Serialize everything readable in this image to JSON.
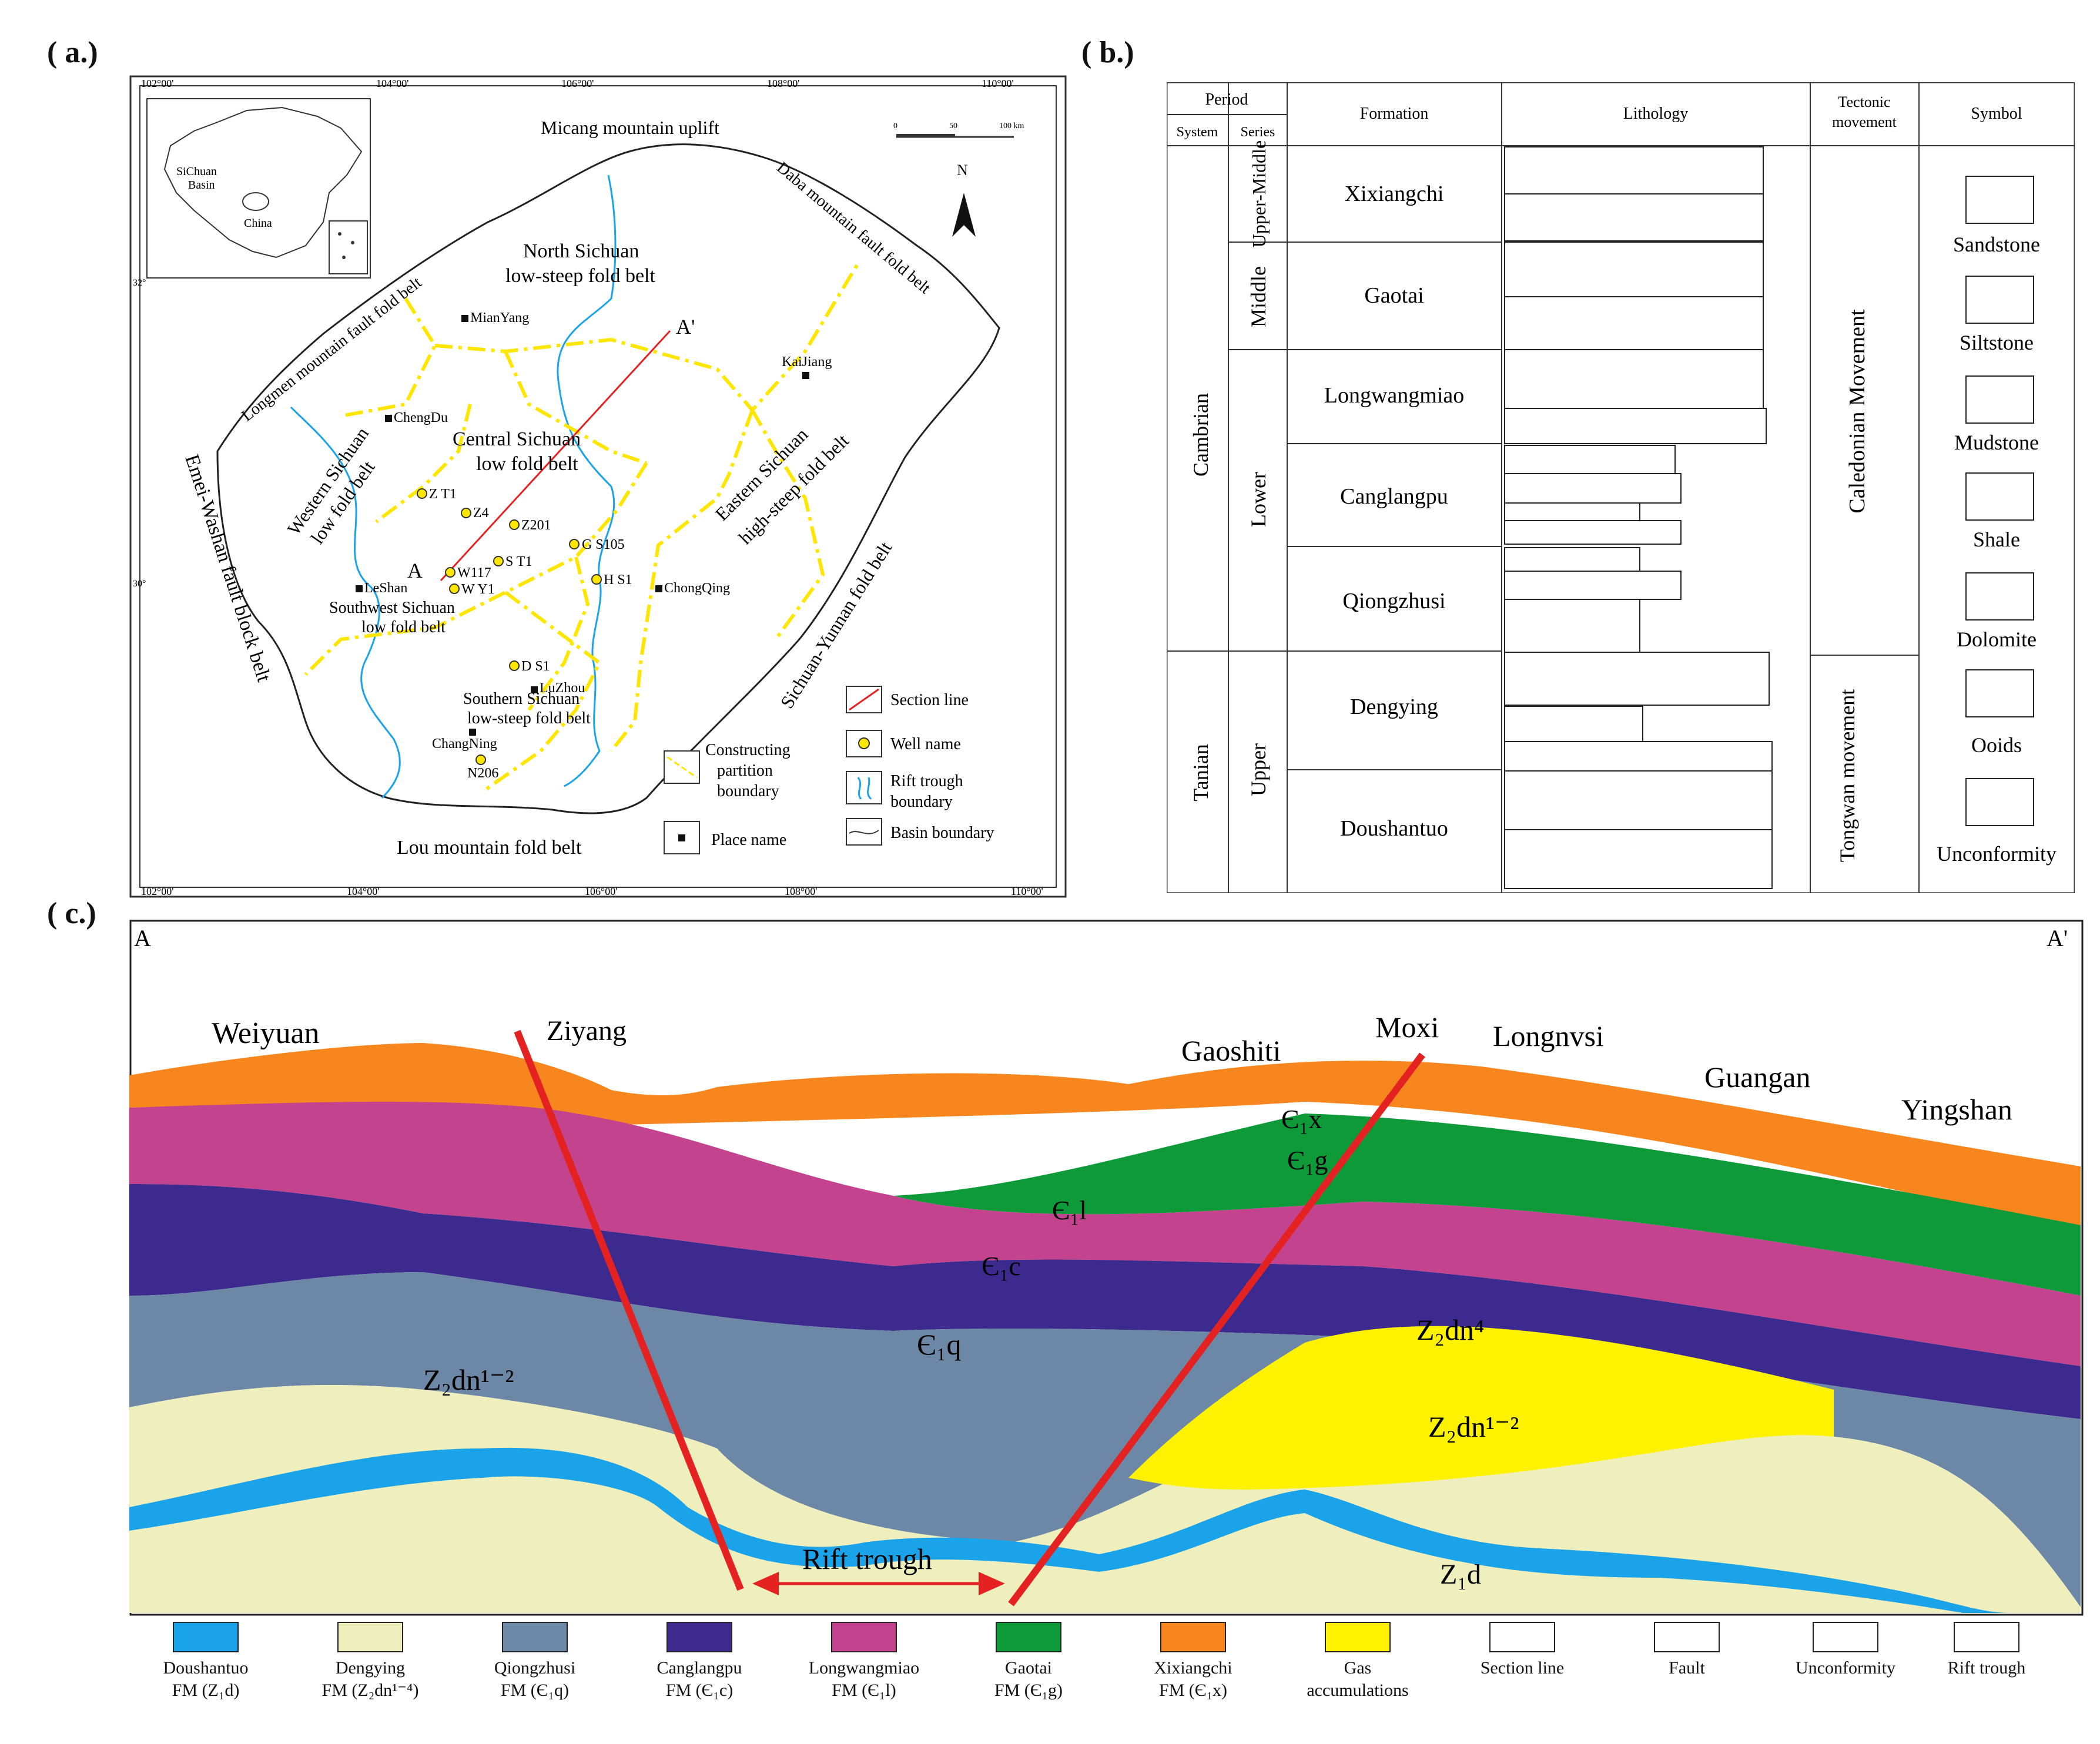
{
  "panels": {
    "a": "( a.)",
    "b": "( b.)",
    "c": "( c.)"
  },
  "map": {
    "inset": {
      "label_basin": "SiChuan",
      "label_basin2": "Basin",
      "label_country": "China"
    },
    "ticks_top": [
      "102°00'",
      "104°00'",
      "106°00'",
      "108°00'",
      "110°00'"
    ],
    "ticks_bottom": [
      "102°00'",
      "104°00'",
      "106°00'",
      "108°00'",
      "110°00'"
    ],
    "ticks_left": [
      "32°",
      "30°"
    ],
    "scale": [
      "0",
      "50",
      "100 km"
    ],
    "north": "N",
    "regions": {
      "micang": "Micang mountain uplift",
      "daba": "Daba mountain fault fold belt",
      "longmen": "Longmen mountain fault fold belt",
      "emei": "Emei-Washan fault block belt",
      "north_1": "North Sichuan",
      "north_2": "low-steep fold belt",
      "central_1": "Central Sichuan",
      "central_2": "low fold belt",
      "western_1": "Western Sichuan",
      "western_2": "low fold belt",
      "eastern_1": "Eastern Sichuan",
      "eastern_2": "high-steep fold belt",
      "sw_1": "Southwest Sichuan",
      "sw_2": "low fold belt",
      "south_1": "Southern Sichuan",
      "south_2": "low-steep fold belt",
      "sichuan_yunnan": "Sichuan-Yunnan fold belt",
      "lou": "Lou mountain fold belt"
    },
    "places": [
      "MianYang",
      "ChengDu",
      "KaiJiang",
      "LeShan",
      "ChongQing",
      "LuZhou",
      "ChangNing"
    ],
    "wells": [
      "Z T1",
      "Z4",
      "Z201",
      "G S105",
      "S T1",
      "W117",
      "W Y1",
      "H S1",
      "D S1",
      "N206"
    ],
    "section_end_a": "A",
    "section_end_b": "A'",
    "legend": {
      "section": "Section line",
      "well": "Well name",
      "rift_1": "Rift trough",
      "rift_2": "boundary",
      "boundary_1": "Constructing",
      "boundary_2": "partition",
      "boundary_3": "boundary",
      "place": "Place name",
      "basin": "Basin boundary"
    }
  },
  "strat": {
    "headers": {
      "period": "Period",
      "system": "System",
      "series": "Series",
      "formation": "Formation",
      "lithology": "Lithology",
      "tectonic_1": "Tectonic",
      "tectonic_2": "movement",
      "symbol": "Symbol"
    },
    "systems": [
      "Cambrian",
      "Tanian"
    ],
    "series": [
      "Upper-Middle",
      "Middle",
      "Lower",
      "Upper"
    ],
    "formations": [
      "Xixiangchi",
      "Gaotai",
      "Longwangmiao",
      "Canglangpu",
      "Qiongzhusi",
      "Dengying",
      "Doushantuo"
    ],
    "movements": [
      "Caledonian Movement",
      "Tongwan movement"
    ],
    "symbols": [
      "Sandstone",
      "Siltstone",
      "Mudstone",
      "Shale",
      "Dolomite",
      "Ooids",
      "Unconformity"
    ]
  },
  "section": {
    "end_a": "A",
    "end_b": "A'",
    "places": [
      "Weiyuan",
      "Ziyang",
      "Gaoshiti",
      "Moxi",
      "Longnvsi",
      "Guangan",
      "Yingshan"
    ],
    "labels": {
      "x": "Є₁x",
      "g": "Є₁g",
      "l": "Є₁l",
      "c": "Є₁c",
      "q": "Є₁q",
      "dn12_left": "Z₂dn¹⁻²",
      "dn4": "Z₂dn⁴",
      "dn12_right": "Z₂dn¹⁻²",
      "d": "Z₁d",
      "rift": "Rift trough"
    }
  },
  "legend": [
    {
      "name": "Doushantuo",
      "sub": "FM (Z₁d)",
      "color": "#1aa3e8"
    },
    {
      "name": "Dengying",
      "sub": "FM (Z₂dn¹⁻⁴)",
      "color": "#efeebd"
    },
    {
      "name": "Qiongzhusi",
      "sub": "FM (Є₁q)",
      "color": "#6d88a6"
    },
    {
      "name": "Canglangpu",
      "sub": "FM (Є₁c)",
      "color": "#3d2a8f"
    },
    {
      "name": "Longwangmiao",
      "sub": "FM (Є₁l)",
      "color": "#c3438f"
    },
    {
      "name": "Gaotai",
      "sub": "FM (Є₁g)",
      "color": "#0f9a3a"
    },
    {
      "name": "Xixiangchi",
      "sub": "FM (Є₁x)",
      "color": "#f7861f"
    },
    {
      "name": "Gas",
      "sub": "accumulations",
      "color": "#fff200"
    },
    {
      "name": "Section line",
      "sub": "",
      "color": "#ffffff"
    },
    {
      "name": "Fault",
      "sub": "",
      "color": "#ffffff"
    },
    {
      "name": "Unconformity",
      "sub": "",
      "color": "#ffffff"
    },
    {
      "name": "Rift trough",
      "sub": "",
      "color": "#ffffff"
    }
  ]
}
